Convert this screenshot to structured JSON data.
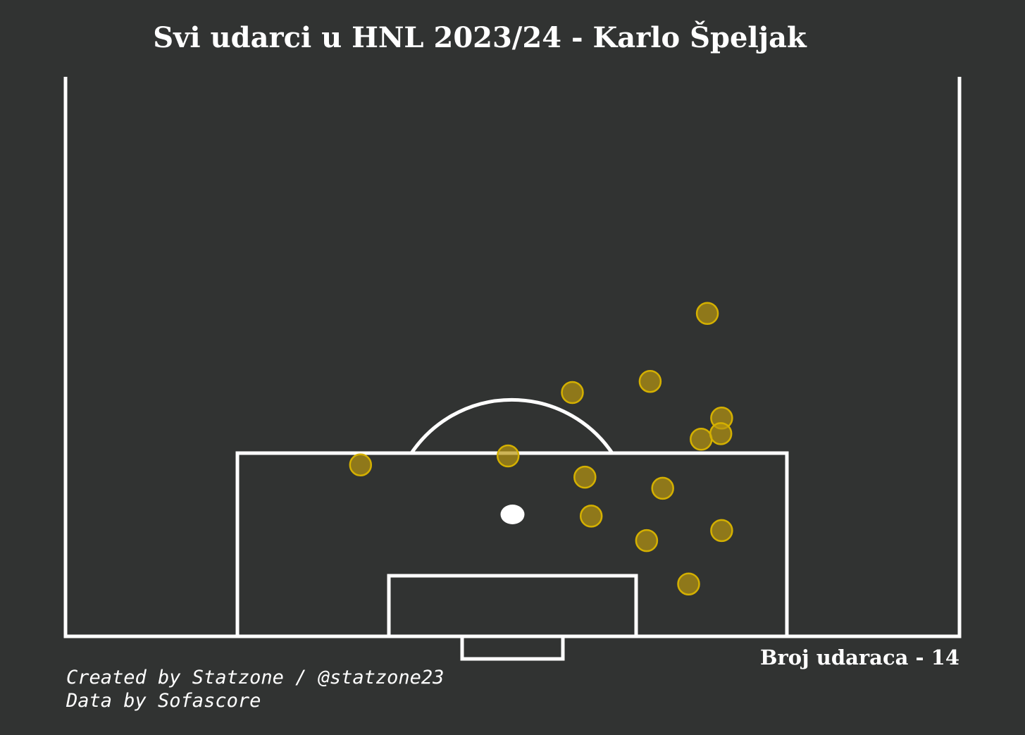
{
  "title": "Svi udarci u HNL 2023/24 - Karlo Špeljak",
  "shot_count_label": "Broj udaraca - 14",
  "credits": {
    "created_by": "Created by Statzone / @statzone23",
    "data_by": "Data by Sofascore"
  },
  "colors": {
    "background": "#313332",
    "pitch_lines": "#ffffff",
    "shot_fill": "#b8960f",
    "shot_edge": "#d4b000"
  },
  "chart_data": {
    "type": "scatter",
    "title": "Svi udarci u HNL 2023/24 - Karlo Špeljak",
    "pitch": "half vertical (opta-style 0-100)",
    "x_field": "pitch width coordinate (0-100)",
    "y_field": "pitch length coordinate (50-100, goal line at 100)",
    "xlim": [
      0,
      100
    ],
    "ylim": [
      50,
      102
    ],
    "points": [
      {
        "x": 33.0,
        "y": 84.6
      },
      {
        "x": 49.5,
        "y": 83.8
      },
      {
        "x": 56.7,
        "y": 78.1
      },
      {
        "x": 58.1,
        "y": 85.7
      },
      {
        "x": 58.8,
        "y": 89.2
      },
      {
        "x": 65.4,
        "y": 77.1
      },
      {
        "x": 65.0,
        "y": 91.4
      },
      {
        "x": 66.8,
        "y": 86.7
      },
      {
        "x": 69.7,
        "y": 95.3
      },
      {
        "x": 71.1,
        "y": 82.3
      },
      {
        "x": 73.4,
        "y": 90.5
      },
      {
        "x": 73.4,
        "y": 80.4
      },
      {
        "x": 73.3,
        "y": 81.8
      },
      {
        "x": 71.8,
        "y": 71.0
      }
    ]
  }
}
